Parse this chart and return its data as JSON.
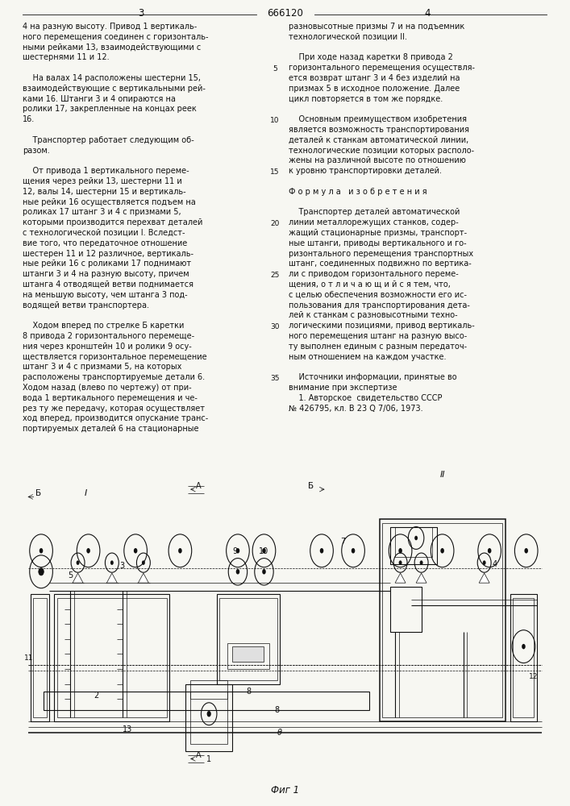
{
  "page_bg": "#f7f7f2",
  "text_color": "#111111",
  "title_center": "666120",
  "page_left": "3",
  "page_right": "4",
  "left_column": [
    "4 на разную высоту. Привод 1 вертикаль-",
    "ного перемещения соединен с горизонталь-",
    "ными рейками 13, взаимодействующими с",
    "шестернями 11 и 12.",
    "",
    "    На валах 14 расположены шестерни 15,",
    "взаимодействующие с вертикальными рей-",
    "ками 16. Штанги 3 и 4 опираются на",
    "ролики 17, закрепленные на концах реек",
    "16.",
    "",
    "    Транспортер работает следующим об-",
    "разом.",
    "",
    "    От привода 1 вертикального переме-",
    "щения через рейки 13, шестерни 11 и",
    "12, валы 14, шестерни 15 и вертикаль-",
    "ные рейки 16 осуществляется подъем на",
    "роликах 17 штанг 3 и 4 с призмами 5,",
    "которыми производится перехват деталей",
    "с технологической позиции I. Вследст-",
    "вие того, что передаточное отношение",
    "шестерен 11 и 12 различное, вертикаль-",
    "ные рейки 16 с роликами 17 поднимают",
    "штанги 3 и 4 на разную высоту, причем",
    "штанга 4 отводящей ветви поднимается",
    "на меньшую высоту, чем штанга 3 под-",
    "водящей ветви транспортера.",
    "",
    "    Ходом вперед по стрелке Б каретки",
    "8 привода 2 горизонтального перемеще-",
    "ния через кронштейн 10 и ролики 9 осу-",
    "ществляется горизонтальное перемещение",
    "штанг 3 и 4 с призмами 5, на которых",
    "расположены транспортируемые детали 6.",
    "Ходом назад (влево по чертежу) от при-",
    "вода 1 вертикального перемещения и че-",
    "рез ту же передачу, которая осуществляет",
    "ход вперед, производится опускание транс-",
    "портируемых деталей 6 на стационарные"
  ],
  "right_column": [
    "разновысотные призмы 7 и на подъемник",
    "технологической позиции II.",
    "",
    "    При ходе назад каретки 8 привода 2",
    "горизонтального перемещения осуществля-",
    "ется возврат штанг 3 и 4 без изделий на",
    "призмах 5 в исходное положение. Далее",
    "цикл повторяется в том же порядке.",
    "",
    "    Основным преимуществом изобретения",
    "является возможность транспортирования",
    "деталей к станкам автоматической линии,",
    "технологические позиции которых располо-",
    "жены на различной высоте по отношению",
    "к уровню транспортировки деталей.",
    "",
    "Ф о р м у л а   и з о б р е т е н и я",
    "",
    "    Транспортер деталей автоматической",
    "линии металлорежущих станков, содер-",
    "жащий стационарные призмы, транспорт-",
    "ные штанги, приводы вертикального и го-",
    "ризонтального перемещения транспортных",
    "штанг, соединенных подвижно по вертика-",
    "ли с приводом горизонтального переме-",
    "щения, о т л и ч а ю щ и й с я тем, что,",
    "с целью обеспечения возможности его ис-",
    "пользования для транспортирования дета-",
    "лей к станкам с разновысотными техно-",
    "логическими позициями, привод вертикаль-",
    "ного перемещения штанг на разную высо-",
    "ту выполнен единым с разным передаточ-",
    "ным отношением на каждом участке.",
    "",
    "    Источники информации, принятые во",
    "внимание при экспертизе",
    "    1. Авторское  свидетельство СССР",
    "№ 426795, кл. В 23 Q 7/06, 1973."
  ],
  "line_numbers": [
    "5",
    "10",
    "15",
    "20",
    "25",
    "30",
    "35"
  ],
  "line_number_row": [
    4,
    9,
    14,
    19,
    24,
    29,
    34
  ],
  "fig_label": "Фиг 1"
}
